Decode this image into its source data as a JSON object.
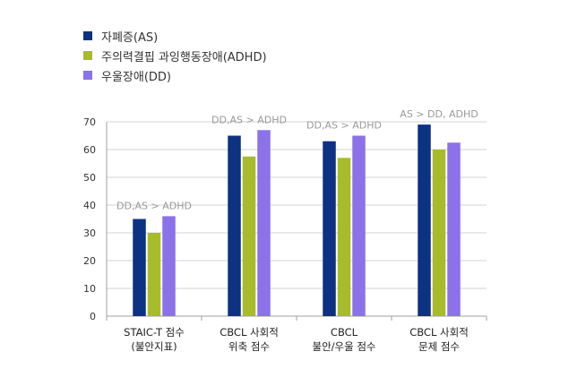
{
  "chart_data": {
    "type": "bar",
    "categories": [
      [
        "STAIC-T 점수",
        "(불안지표)"
      ],
      [
        "CBCL 사회적",
        "위축 점수"
      ],
      [
        "CBCL",
        "불안/우울 점수"
      ],
      [
        "CBCL 사회적",
        "문제 점수"
      ]
    ],
    "series": [
      {
        "name": "자폐증(AS)",
        "color": "#0d3281",
        "values": [
          35,
          65,
          63,
          69
        ]
      },
      {
        "name": "주의력결핍 과잉행동장애(ADHD)",
        "color": "#a8bb2a",
        "values": [
          30,
          57.5,
          57,
          60
        ]
      },
      {
        "name": "우울장애(DD)",
        "color": "#8b72e8",
        "values": [
          36,
          67,
          65,
          62.5
        ]
      }
    ],
    "annotations": [
      "DD,AS > ADHD",
      "DD,AS > ADHD",
      "DD,AS > ADHD",
      "AS > DD, ADHD"
    ],
    "ylim": [
      0,
      70
    ],
    "yticks": [
      0,
      10,
      20,
      30,
      40,
      50,
      60,
      70
    ],
    "grid": true,
    "legend_position": "top-left",
    "xlabel": "",
    "ylabel": ""
  }
}
